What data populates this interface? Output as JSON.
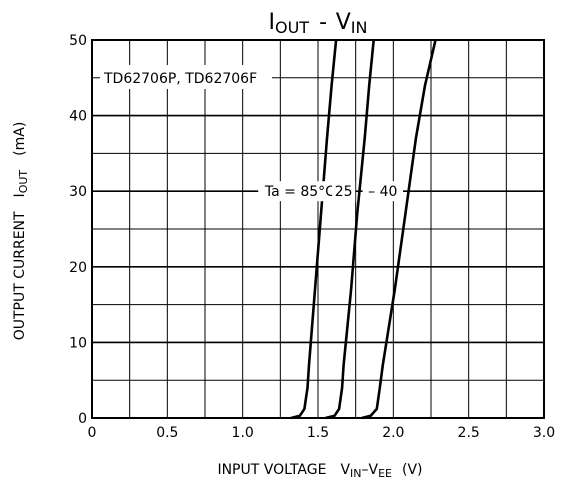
{
  "chart_data": {
    "type": "line",
    "title": {
      "main": "I",
      "main_sub": "OUT",
      "dash": "-",
      "v": "V",
      "v_sub": "IN"
    },
    "device_label": "TD62706P, TD62706F",
    "xlabel": {
      "prefix": "INPUT VOLTAGE",
      "v1": "V",
      "v1_sub": "IN",
      "minus": "–",
      "v2": "V",
      "v2_sub": "EE",
      "unit": "(V)"
    },
    "ylabel": {
      "prefix": "OUTPUT CURRENT",
      "i": "I",
      "i_sub": "OUT",
      "unit": "(mA)"
    },
    "xlim": [
      0,
      3.0
    ],
    "ylim": [
      0,
      50
    ],
    "x_ticks": [
      0,
      0.5,
      1.0,
      1.5,
      2.0,
      2.5,
      3.0
    ],
    "x_tick_labels": [
      "0",
      "0.5",
      "1.0",
      "1.5",
      "2.0",
      "2.5",
      "3.0"
    ],
    "y_ticks": [
      0,
      10,
      20,
      30,
      40,
      50
    ],
    "y_tick_labels": [
      "0",
      "10",
      "20",
      "30",
      "40",
      "50"
    ],
    "grid": true,
    "minor_grid": {
      "x_step": 0.25,
      "y_step": 5
    },
    "series": [
      {
        "name": "Ta = 85°C",
        "points": [
          [
            1.32,
            0
          ],
          [
            1.38,
            0.3
          ],
          [
            1.41,
            1.2
          ],
          [
            1.43,
            4
          ],
          [
            1.44,
            7
          ],
          [
            1.48,
            17
          ],
          [
            1.52,
            27
          ],
          [
            1.56,
            37
          ],
          [
            1.59,
            44
          ],
          [
            1.62,
            50
          ]
        ]
      },
      {
        "name": "25",
        "points": [
          [
            1.55,
            0
          ],
          [
            1.61,
            0.3
          ],
          [
            1.64,
            1.2
          ],
          [
            1.66,
            4
          ],
          [
            1.67,
            7
          ],
          [
            1.72,
            17
          ],
          [
            1.76,
            27
          ],
          [
            1.81,
            37
          ],
          [
            1.84,
            44
          ],
          [
            1.87,
            50
          ]
        ]
      },
      {
        "name": "– 40",
        "points": [
          [
            1.79,
            0
          ],
          [
            1.85,
            0.3
          ],
          [
            1.89,
            1.2
          ],
          [
            1.91,
            4
          ],
          [
            1.93,
            7
          ],
          [
            2.01,
            17
          ],
          [
            2.08,
            27
          ],
          [
            2.15,
            37
          ],
          [
            2.21,
            44
          ],
          [
            2.28,
            50
          ]
        ]
      }
    ],
    "series_labels": [
      {
        "text": "Ta = 85°C",
        "x": 1.38,
        "y": 30
      },
      {
        "text": "25",
        "x": 1.67,
        "y": 30
      },
      {
        "text": "– 40",
        "x": 1.93,
        "y": 30
      }
    ]
  }
}
